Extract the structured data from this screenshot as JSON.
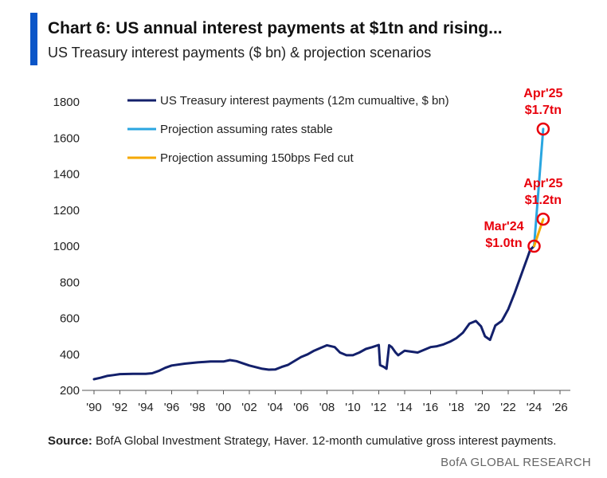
{
  "header": {
    "title": "Chart 6: US annual interest payments at $1tn and rising...",
    "subtitle": "US Treasury interest payments ($ bn) & projection scenarios"
  },
  "footer": {
    "source_label": "Source:",
    "source_text": "BofA Global Investment Strategy, Haver. 12-month cumulative gross interest payments.",
    "brand": "BofA GLOBAL RESEARCH"
  },
  "colors": {
    "accent": "#0a55c8",
    "historical": "#13206b",
    "stable": "#2aa6e0",
    "cut": "#f5a800",
    "annotation": "#e8000c",
    "axis": "#555555"
  },
  "chart_data": {
    "type": "line",
    "ylim": [
      200,
      1800
    ],
    "xlim": [
      1990,
      2026
    ],
    "y_ticks": [
      200,
      400,
      600,
      800,
      1000,
      1200,
      1400,
      1600,
      1800
    ],
    "x_ticks": [
      1990,
      1992,
      1994,
      1996,
      1998,
      2000,
      2002,
      2004,
      2006,
      2008,
      2010,
      2012,
      2014,
      2016,
      2018,
      2020,
      2022,
      2024,
      2026
    ],
    "x_tick_labels": [
      "'90",
      "'92",
      "'94",
      "'96",
      "'98",
      "'00",
      "'02",
      "'04",
      "'06",
      "'08",
      "'10",
      "'12",
      "'14",
      "'16",
      "'18",
      "'20",
      "'22",
      "'24",
      "'26"
    ],
    "grid": false,
    "legend_position": "top-left",
    "series": [
      {
        "name": "US Treasury interest payments (12m cumualtive, $ bn)",
        "color": "#13206b",
        "x": [
          1990.0,
          1990.5,
          1991.0,
          1991.5,
          1992.0,
          1993.0,
          1994.0,
          1994.5,
          1995.0,
          1995.5,
          1996.0,
          1997.0,
          1998.0,
          1999.0,
          2000.0,
          2000.5,
          2001.0,
          2001.5,
          2002.0,
          2003.0,
          2003.5,
          2004.0,
          2004.5,
          2005.0,
          2006.0,
          2006.5,
          2007.0,
          2007.5,
          2008.0,
          2008.3,
          2008.6,
          2009.0,
          2009.5,
          2010.0,
          2010.5,
          2011.0,
          2011.5,
          2012.0,
          2012.1,
          2012.4,
          2012.6,
          2012.8,
          2013.0,
          2013.3,
          2013.5,
          2014.0,
          2014.5,
          2015.0,
          2015.5,
          2016.0,
          2016.5,
          2017.0,
          2017.5,
          2018.0,
          2018.5,
          2019.0,
          2019.5,
          2019.9,
          2020.2,
          2020.6,
          2021.0,
          2021.5,
          2022.0,
          2022.5,
          2022.9,
          2023.2,
          2023.5,
          2023.7,
          2024.0
        ],
        "y": [
          262,
          270,
          280,
          285,
          290,
          292,
          292,
          295,
          308,
          325,
          338,
          348,
          355,
          360,
          360,
          368,
          362,
          350,
          338,
          320,
          315,
          316,
          330,
          342,
          385,
          400,
          420,
          435,
          450,
          445,
          440,
          410,
          395,
          395,
          410,
          430,
          440,
          452,
          340,
          330,
          320,
          450,
          440,
          410,
          395,
          420,
          415,
          410,
          425,
          440,
          445,
          455,
          470,
          490,
          520,
          570,
          585,
          555,
          500,
          480,
          560,
          585,
          650,
          740,
          820,
          880,
          940,
          980,
          1000
        ]
      },
      {
        "name": "Projection assuming rates stable",
        "color": "#2aa6e0",
        "x": [
          2024.0,
          2024.7
        ],
        "y": [
          1000,
          1650
        ]
      },
      {
        "name": "Projection assuming 150bps Fed cut",
        "color": "#f5a800",
        "x": [
          2024.0,
          2024.7
        ],
        "y": [
          1000,
          1150
        ]
      }
    ],
    "annotations": [
      {
        "label": "Apr'25",
        "value_label": "$1.7tn",
        "x": 2024.7,
        "y": 1650,
        "placement": "above"
      },
      {
        "label": "Apr'25",
        "value_label": "$1.2tn",
        "x": 2024.7,
        "y": 1150,
        "placement": "above"
      },
      {
        "label": "Mar'24",
        "value_label": "$1.0tn",
        "x": 2024.0,
        "y": 1000,
        "placement": "left"
      }
    ]
  }
}
